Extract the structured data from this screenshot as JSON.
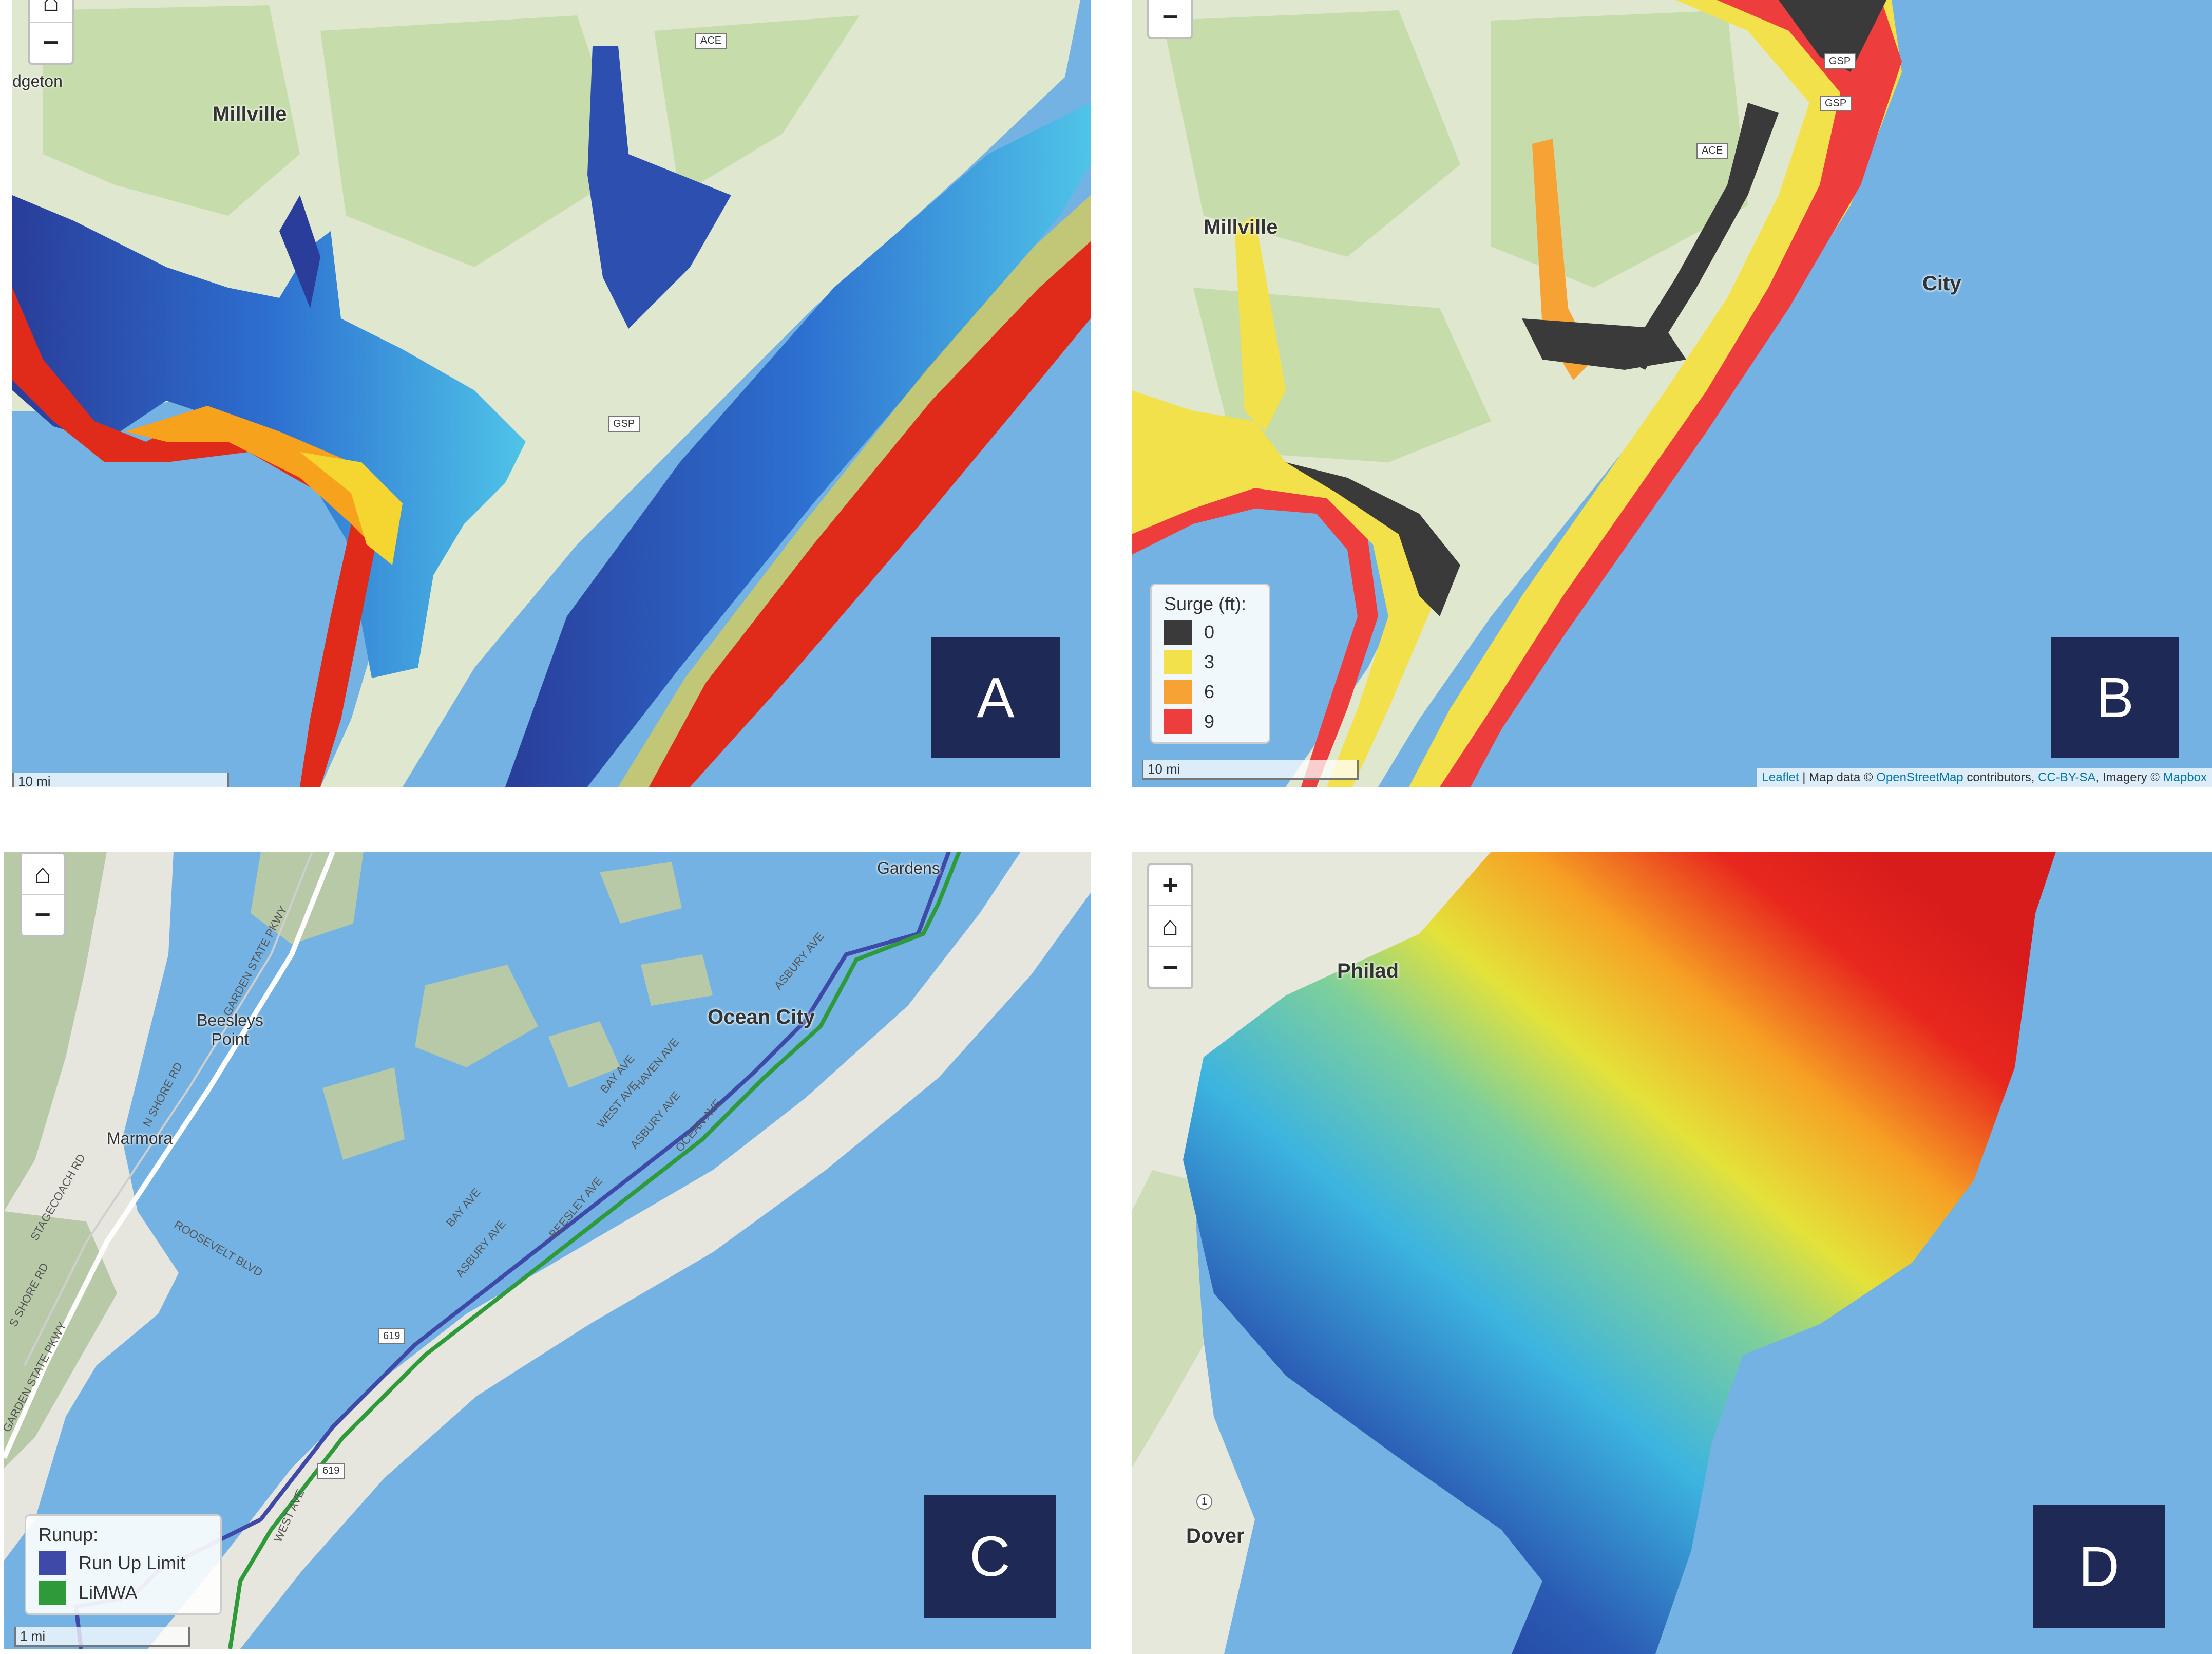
{
  "controls": {
    "home": "⌂",
    "zoom_in": "+",
    "zoom_out": "−"
  },
  "panelA": {
    "badge": "A",
    "places": {
      "millville": "Millville",
      "bridgeton": "dgeton"
    },
    "shields": {
      "ace": "ACE",
      "gsp": "GSP"
    },
    "scale": "10 mi"
  },
  "panelB": {
    "badge": "B",
    "places": {
      "millville": "Millville",
      "city": "City"
    },
    "shields": {
      "ace": "ACE",
      "gsp1": "GSP",
      "gsp2": "GSP"
    },
    "legend": {
      "title": "Surge (ft):",
      "items": [
        {
          "label": "0",
          "color": "#3a3a3a"
        },
        {
          "label": "3",
          "color": "#f2e14a"
        },
        {
          "label": "6",
          "color": "#f6a234"
        },
        {
          "label": "9",
          "color": "#ee3d3d"
        }
      ]
    },
    "scale": "10 mi",
    "attribution": {
      "leaflet": "Leaflet",
      "sep1": " | Map data © ",
      "osm": "OpenStreetMap",
      "sep2": " contributors, ",
      "license": "CC-BY-SA",
      "sep3": ", Imagery © ",
      "mapbox": "Mapbox"
    }
  },
  "panelC": {
    "badge": "C",
    "places": {
      "ocean_city": "Ocean City",
      "beesleys_point": "Beesleys Point",
      "marmora": "Marmora",
      "gardens": "Gardens"
    },
    "roads": {
      "garden_state": "GARDEN STATE PKWY",
      "garden_state2": "GARDEN STATE PKWY",
      "shore_rd": "N SHORE RD",
      "shore_rd2": "S SHORE RD",
      "roosevelt": "ROOSEVELT BLVD",
      "stagecoach": "STAGECOACH RD",
      "bay_ave": "BAY AVE",
      "bay_ave2": "BAY AVE",
      "west_ave": "WEST AVE",
      "west_ave2": "WEST AVE",
      "asbury": "ASBURY AVE",
      "asbury2": "ASBURY AVE",
      "asbury3": "ASBURY AVE",
      "haven": "HAVEN AVE",
      "ocean_ave": "OCEAN AVE",
      "beesley_ave": "BEESLEY AVE",
      "r619a": "619",
      "r619b": "619"
    },
    "legend": {
      "title": "Runup:",
      "items": [
        {
          "label": "Run Up Limit",
          "color": "#3f4aa8"
        },
        {
          "label": "LiMWA",
          "color": "#2e9a3a"
        }
      ]
    },
    "scale": "1 mi"
  },
  "panelD": {
    "badge": "D",
    "places": {
      "philad": "Philad",
      "dover": "Dover"
    },
    "shields": {
      "r1": "1"
    }
  },
  "colors": {
    "water": "#73b2e2",
    "land": "#dfe7cf",
    "green": "#c6dcaa",
    "badge": "#1e2a55"
  }
}
